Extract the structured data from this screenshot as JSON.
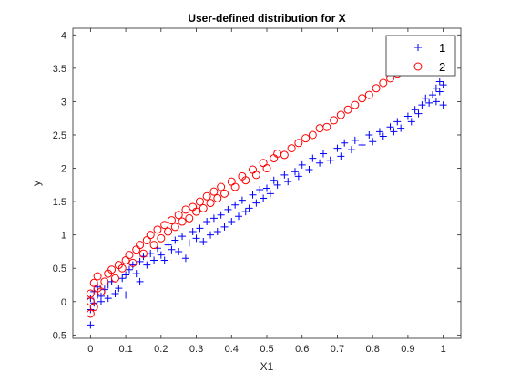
{
  "chart_data": {
    "type": "scatter",
    "title": "User-defined distribution for X",
    "xlabel": "X1",
    "ylabel": "y",
    "xlim": [
      -0.05,
      1.05
    ],
    "ylim": [
      -0.55,
      4.1
    ],
    "xticks": [
      0,
      0.1,
      0.2,
      0.3,
      0.4,
      0.5,
      0.6,
      0.7,
      0.8,
      0.9,
      1
    ],
    "xtick_labels": [
      "0",
      "0.1",
      "0.2",
      "0.3",
      "0.4",
      "0.5",
      "0.6",
      "0.7",
      "0.8",
      "0.9",
      "1"
    ],
    "yticks": [
      -0.5,
      0,
      0.5,
      1,
      1.5,
      2,
      2.5,
      3,
      3.5,
      4
    ],
    "ytick_labels": [
      "-0.5",
      "0",
      "0.5",
      "1",
      "1.5",
      "2",
      "2.5",
      "3",
      "3.5",
      "4"
    ],
    "grid": false,
    "legend": {
      "placement": "top-right"
    },
    "series": [
      {
        "name": "1",
        "marker": "plus",
        "color": "#0000ff",
        "points": [
          [
            0,
            -0.35
          ],
          [
            0,
            -0.12
          ],
          [
            0,
            0.05
          ],
          [
            0.01,
            0.15
          ],
          [
            0.01,
            -0.02
          ],
          [
            0.02,
            0.1
          ],
          [
            0.02,
            0.22
          ],
          [
            0.03,
            0.0
          ],
          [
            0.03,
            0.08
          ],
          [
            0.04,
            0.18
          ],
          [
            0.05,
            0.25
          ],
          [
            0.05,
            0.05
          ],
          [
            0.06,
            0.3
          ],
          [
            0.07,
            0.12
          ],
          [
            0.08,
            0.2
          ],
          [
            0.09,
            0.35
          ],
          [
            0.1,
            0.4
          ],
          [
            0.1,
            0.1
          ],
          [
            0.11,
            0.48
          ],
          [
            0.12,
            0.55
          ],
          [
            0.13,
            0.42
          ],
          [
            0.14,
            0.6
          ],
          [
            0.14,
            0.3
          ],
          [
            0.15,
            0.68
          ],
          [
            0.16,
            0.55
          ],
          [
            0.17,
            0.72
          ],
          [
            0.18,
            0.62
          ],
          [
            0.19,
            0.8
          ],
          [
            0.2,
            0.7
          ],
          [
            0.21,
            0.62
          ],
          [
            0.22,
            0.85
          ],
          [
            0.23,
            0.78
          ],
          [
            0.24,
            0.92
          ],
          [
            0.25,
            0.75
          ],
          [
            0.26,
            0.98
          ],
          [
            0.27,
            0.65
          ],
          [
            0.28,
            0.88
          ],
          [
            0.29,
            1.05
          ],
          [
            0.3,
            0.95
          ],
          [
            0.31,
            1.1
          ],
          [
            0.32,
            0.9
          ],
          [
            0.33,
            1.2
          ],
          [
            0.34,
            1.0
          ],
          [
            0.35,
            1.25
          ],
          [
            0.36,
            1.05
          ],
          [
            0.37,
            1.3
          ],
          [
            0.38,
            1.12
          ],
          [
            0.39,
            1.38
          ],
          [
            0.4,
            1.2
          ],
          [
            0.41,
            1.45
          ],
          [
            0.42,
            1.28
          ],
          [
            0.43,
            1.52
          ],
          [
            0.44,
            1.35
          ],
          [
            0.45,
            1.4
          ],
          [
            0.46,
            1.6
          ],
          [
            0.47,
            1.48
          ],
          [
            0.48,
            1.68
          ],
          [
            0.49,
            1.55
          ],
          [
            0.5,
            1.7
          ],
          [
            0.51,
            1.62
          ],
          [
            0.52,
            1.82
          ],
          [
            0.53,
            1.75
          ],
          [
            0.55,
            1.9
          ],
          [
            0.56,
            1.8
          ],
          [
            0.58,
            1.95
          ],
          [
            0.59,
            1.88
          ],
          [
            0.6,
            2.05
          ],
          [
            0.62,
            1.98
          ],
          [
            0.63,
            2.15
          ],
          [
            0.65,
            2.08
          ],
          [
            0.66,
            2.22
          ],
          [
            0.68,
            2.12
          ],
          [
            0.7,
            2.3
          ],
          [
            0.71,
            2.18
          ],
          [
            0.72,
            2.38
          ],
          [
            0.74,
            2.28
          ],
          [
            0.75,
            2.42
          ],
          [
            0.77,
            2.35
          ],
          [
            0.79,
            2.5
          ],
          [
            0.8,
            2.4
          ],
          [
            0.82,
            2.55
          ],
          [
            0.83,
            2.48
          ],
          [
            0.85,
            2.62
          ],
          [
            0.86,
            2.55
          ],
          [
            0.87,
            2.7
          ],
          [
            0.88,
            2.6
          ],
          [
            0.9,
            2.78
          ],
          [
            0.91,
            2.7
          ],
          [
            0.92,
            2.88
          ],
          [
            0.93,
            2.82
          ],
          [
            0.94,
            2.95
          ],
          [
            0.95,
            3.05
          ],
          [
            0.96,
            2.98
          ],
          [
            0.97,
            3.1
          ],
          [
            0.98,
            3.2
          ],
          [
            0.98,
            3.0
          ],
          [
            0.99,
            3.15
          ],
          [
            0.99,
            3.3
          ],
          [
            1,
            3.25
          ],
          [
            1,
            2.95
          ]
        ]
      },
      {
        "name": "2",
        "marker": "circle",
        "color": "#ff0000",
        "points": [
          [
            0,
            -0.18
          ],
          [
            0,
            0.0
          ],
          [
            0,
            0.12
          ],
          [
            0.01,
            -0.08
          ],
          [
            0.01,
            0.28
          ],
          [
            0.02,
            0.2
          ],
          [
            0.02,
            0.38
          ],
          [
            0.03,
            0.15
          ],
          [
            0.04,
            0.3
          ],
          [
            0.05,
            0.42
          ],
          [
            0.06,
            0.48
          ],
          [
            0.07,
            0.35
          ],
          [
            0.08,
            0.55
          ],
          [
            0.09,
            0.5
          ],
          [
            0.1,
            0.62
          ],
          [
            0.11,
            0.7
          ],
          [
            0.12,
            0.58
          ],
          [
            0.13,
            0.78
          ],
          [
            0.14,
            0.85
          ],
          [
            0.15,
            0.72
          ],
          [
            0.16,
            0.92
          ],
          [
            0.17,
            1.0
          ],
          [
            0.18,
            0.85
          ],
          [
            0.19,
            1.08
          ],
          [
            0.2,
            0.95
          ],
          [
            0.21,
            1.15
          ],
          [
            0.22,
            1.05
          ],
          [
            0.23,
            1.22
          ],
          [
            0.24,
            1.12
          ],
          [
            0.25,
            1.3
          ],
          [
            0.26,
            1.2
          ],
          [
            0.27,
            1.38
          ],
          [
            0.28,
            1.25
          ],
          [
            0.29,
            1.42
          ],
          [
            0.3,
            1.35
          ],
          [
            0.31,
            1.5
          ],
          [
            0.32,
            1.4
          ],
          [
            0.33,
            1.58
          ],
          [
            0.34,
            1.48
          ],
          [
            0.35,
            1.65
          ],
          [
            0.36,
            1.55
          ],
          [
            0.37,
            1.72
          ],
          [
            0.38,
            1.62
          ],
          [
            0.4,
            1.8
          ],
          [
            0.41,
            1.72
          ],
          [
            0.43,
            1.88
          ],
          [
            0.44,
            1.82
          ],
          [
            0.46,
            1.98
          ],
          [
            0.47,
            1.9
          ],
          [
            0.49,
            2.08
          ],
          [
            0.5,
            2.0
          ],
          [
            0.52,
            2.15
          ],
          [
            0.53,
            2.22
          ],
          [
            0.55,
            2.2
          ],
          [
            0.57,
            2.3
          ],
          [
            0.59,
            2.38
          ],
          [
            0.61,
            2.45
          ],
          [
            0.63,
            2.5
          ],
          [
            0.65,
            2.6
          ],
          [
            0.67,
            2.62
          ],
          [
            0.69,
            2.72
          ],
          [
            0.71,
            2.8
          ],
          [
            0.73,
            2.88
          ],
          [
            0.75,
            2.95
          ],
          [
            0.77,
            3.05
          ],
          [
            0.79,
            3.1
          ],
          [
            0.81,
            3.2
          ],
          [
            0.83,
            3.28
          ],
          [
            0.85,
            3.35
          ],
          [
            0.87,
            3.42
          ],
          [
            0.89,
            3.5
          ],
          [
            0.9,
            3.45
          ],
          [
            0.91,
            3.55
          ],
          [
            0.92,
            3.5
          ]
        ]
      }
    ]
  }
}
